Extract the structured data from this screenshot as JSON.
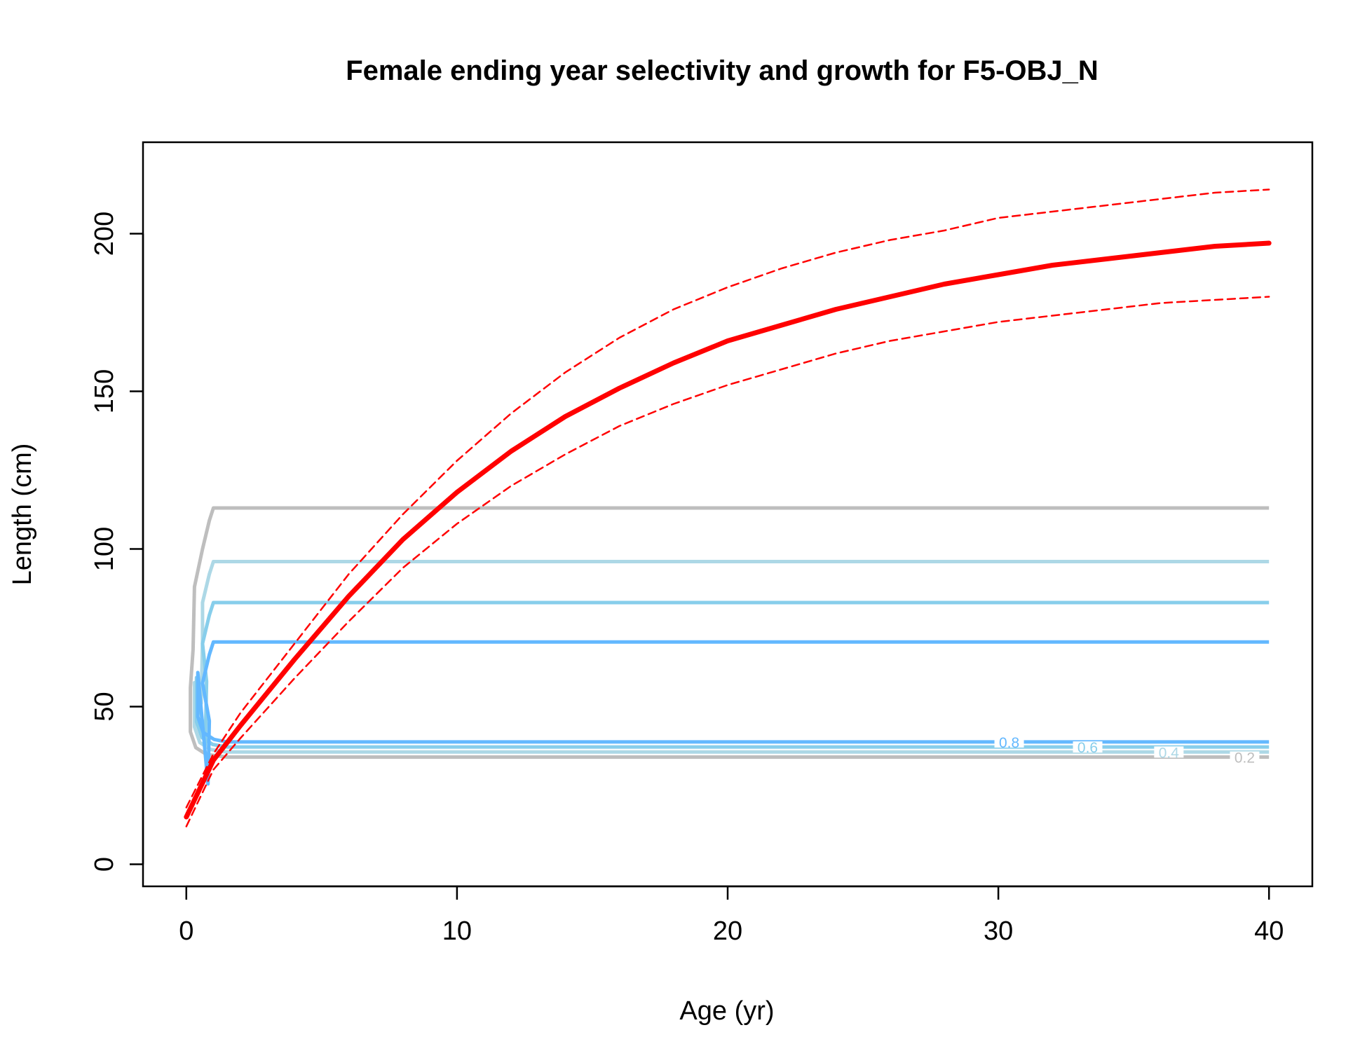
{
  "chart_data": {
    "type": "line",
    "title": "Female ending year selectivity and growth for F5-OBJ_N",
    "xlabel": "Age (yr)",
    "ylabel": "Length (cm)",
    "xlim": [
      -1.6,
      41.6
    ],
    "ylim": [
      -7,
      229
    ],
    "xticks": [
      "0",
      "10",
      "20",
      "30",
      "40"
    ],
    "yticks": [
      "0",
      "50",
      "100",
      "150",
      "200"
    ],
    "xtick_values": [
      0,
      10,
      20,
      30,
      40
    ],
    "ytick_values": [
      0,
      50,
      100,
      150,
      200
    ],
    "grid": false,
    "legend": "none",
    "growth": {
      "mean": {
        "color": "#ff0000",
        "style": "solid",
        "x": [
          0,
          1,
          2,
          4,
          6,
          8,
          10,
          12,
          14,
          16,
          18,
          20,
          22,
          24,
          26,
          28,
          30,
          32,
          34,
          36,
          38,
          40
        ],
        "y": [
          15,
          33,
          44,
          65,
          85,
          103,
          118,
          131,
          142,
          151,
          159,
          166,
          171,
          176,
          180,
          184,
          187,
          190,
          192,
          194,
          196,
          197
        ]
      },
      "upper": {
        "color": "#ff0000",
        "style": "dashed",
        "x": [
          0,
          1,
          2,
          4,
          6,
          8,
          10,
          12,
          14,
          16,
          18,
          20,
          22,
          24,
          26,
          28,
          30,
          32,
          34,
          36,
          38,
          40
        ],
        "y": [
          18,
          35,
          48,
          70,
          92,
          111,
          128,
          143,
          156,
          167,
          176,
          183,
          189,
          194,
          198,
          201,
          205,
          207,
          209,
          211,
          213,
          214
        ]
      },
      "lower": {
        "color": "#ff0000",
        "style": "dashed",
        "x": [
          0,
          1,
          2,
          4,
          6,
          8,
          10,
          12,
          14,
          16,
          18,
          20,
          22,
          24,
          26,
          28,
          30,
          32,
          34,
          36,
          38,
          40
        ],
        "y": [
          12,
          30,
          40,
          59,
          77,
          94,
          108,
          120,
          130,
          139,
          146,
          152,
          157,
          162,
          166,
          169,
          172,
          174,
          176,
          178,
          179,
          180
        ]
      }
    },
    "selectivity_contours": [
      {
        "level": "0.2",
        "color": "#bebebe",
        "y_low": 34,
        "y_high": 113,
        "x_bend": 0.3
      },
      {
        "level": "0.4",
        "color": "#add8e6",
        "y_low": 35.6,
        "y_high": 96,
        "x_bend": 0.6
      },
      {
        "level": "0.6",
        "color": "#87ceeb",
        "y_low": 37.2,
        "y_high": 83,
        "x_bend": 0.75
      },
      {
        "level": "0.8",
        "color": "#63b8ff",
        "y_low": 38.8,
        "y_high": 70.5,
        "x_bend": 0.85
      }
    ],
    "contour_labels": [
      {
        "text": "0.8",
        "x": 30.4,
        "y": 38.8
      },
      {
        "text": "0.6",
        "x": 33.3,
        "y": 37.2
      },
      {
        "text": "0.4",
        "x": 36.3,
        "y": 35.6
      },
      {
        "text": "0.2",
        "x": 39.1,
        "y": 34
      }
    ]
  }
}
